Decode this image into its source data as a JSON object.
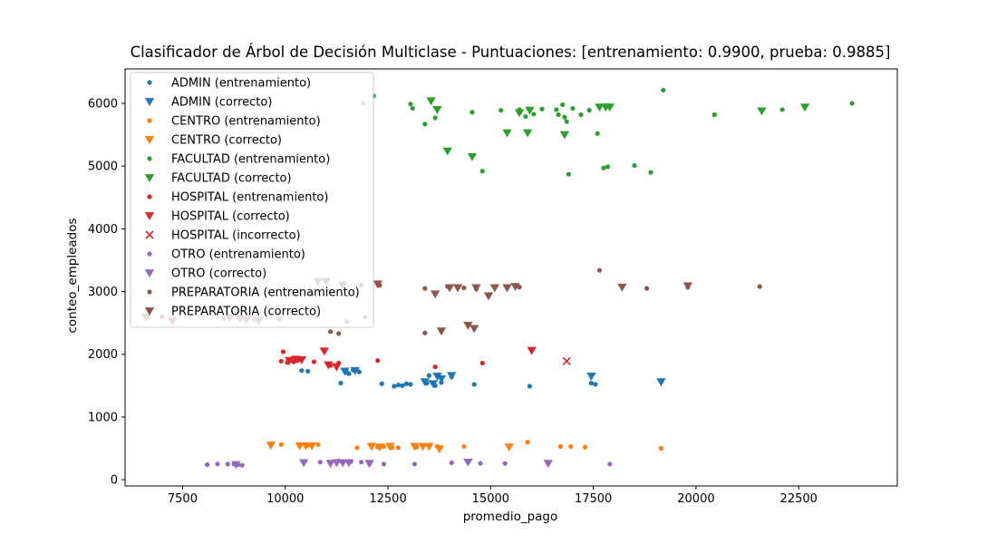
{
  "chart_data": {
    "type": "scatter",
    "title": "Clasificador de Árbol de Decisión Multiclase - Puntuaciones: [entrenamiento: 0.9900, prueba: 0.9885]",
    "xlabel": "promedio_pago",
    "ylabel": "conteo_empleados",
    "xlim": [
      6100,
      24900
    ],
    "ylim": [
      -100,
      6550
    ],
    "xticks": [
      7500,
      10000,
      12500,
      15000,
      17500,
      20000,
      22500
    ],
    "yticks": [
      0,
      1000,
      2000,
      3000,
      4000,
      5000,
      6000
    ],
    "grid": false,
    "legend_position": "top-left",
    "series": [
      {
        "name": "ADMIN (entrenamiento)",
        "color": "#1f77b4",
        "marker": "dot",
        "points": [
          [
            10400,
            1740
          ],
          [
            10550,
            1730
          ],
          [
            11350,
            1540
          ],
          [
            11500,
            1710
          ],
          [
            11550,
            1690
          ],
          [
            11650,
            1750
          ],
          [
            11800,
            1720
          ],
          [
            12350,
            1530
          ],
          [
            12650,
            1490
          ],
          [
            12750,
            1510
          ],
          [
            12850,
            1500
          ],
          [
            12950,
            1530
          ],
          [
            13050,
            1520
          ],
          [
            13450,
            1540
          ],
          [
            13500,
            1660
          ],
          [
            13650,
            1500
          ],
          [
            13800,
            1550
          ],
          [
            14050,
            1640
          ],
          [
            14600,
            1520
          ],
          [
            15950,
            1490
          ],
          [
            17450,
            1540
          ],
          [
            17550,
            1520
          ]
        ]
      },
      {
        "name": "ADMIN (correcto)",
        "color": "#1f77b4",
        "marker": "triangle",
        "points": [
          [
            11450,
            1730
          ],
          [
            11700,
            1740
          ],
          [
            13400,
            1560
          ],
          [
            13600,
            1530
          ],
          [
            13700,
            1650
          ],
          [
            13800,
            1610
          ],
          [
            14050,
            1660
          ],
          [
            17450,
            1650
          ],
          [
            19150,
            1560
          ]
        ]
      },
      {
        "name": "CENTRO (entrenamiento)",
        "color": "#ff7f0e",
        "marker": "dot",
        "points": [
          [
            9900,
            560
          ],
          [
            10550,
            550
          ],
          [
            10800,
            560
          ],
          [
            11750,
            510
          ],
          [
            12250,
            520
          ],
          [
            12400,
            530
          ],
          [
            12600,
            510
          ],
          [
            12750,
            510
          ],
          [
            13200,
            520
          ],
          [
            13700,
            530
          ],
          [
            14350,
            530
          ],
          [
            15900,
            600
          ],
          [
            16700,
            530
          ],
          [
            16950,
            530
          ],
          [
            17300,
            520
          ],
          [
            19150,
            500
          ]
        ]
      },
      {
        "name": "CENTRO (correcto)",
        "color": "#ff7f0e",
        "marker": "triangle",
        "points": [
          [
            9650,
            550
          ],
          [
            10350,
            540
          ],
          [
            10500,
            540
          ],
          [
            10650,
            540
          ],
          [
            12100,
            530
          ],
          [
            12300,
            520
          ],
          [
            12550,
            530
          ],
          [
            13150,
            530
          ],
          [
            13350,
            530
          ],
          [
            13500,
            530
          ],
          [
            13750,
            490
          ],
          [
            15450,
            520
          ]
        ]
      },
      {
        "name": "FACULTAD (entrenamiento)",
        "color": "#2ca02c",
        "marker": "dot",
        "points": [
          [
            11900,
            6000
          ],
          [
            12150,
            6120
          ],
          [
            13050,
            5990
          ],
          [
            13100,
            5920
          ],
          [
            13400,
            5670
          ],
          [
            13650,
            5770
          ],
          [
            14550,
            5860
          ],
          [
            14800,
            4920
          ],
          [
            15250,
            5890
          ],
          [
            15700,
            5900
          ],
          [
            15850,
            5790
          ],
          [
            16050,
            5830
          ],
          [
            16250,
            5910
          ],
          [
            16600,
            5900
          ],
          [
            16650,
            5820
          ],
          [
            16750,
            5980
          ],
          [
            16800,
            5780
          ],
          [
            16900,
            4870
          ],
          [
            16850,
            5710
          ],
          [
            17000,
            5920
          ],
          [
            17200,
            5820
          ],
          [
            17400,
            5890
          ],
          [
            17600,
            5520
          ],
          [
            17750,
            4970
          ],
          [
            17850,
            4990
          ],
          [
            18500,
            5010
          ],
          [
            18900,
            4900
          ],
          [
            19200,
            6210
          ],
          [
            20450,
            5820
          ],
          [
            22100,
            5900
          ],
          [
            23800,
            6000
          ]
        ]
      },
      {
        "name": "FACULTAD (correcto)",
        "color": "#2ca02c",
        "marker": "triangle",
        "points": [
          [
            13550,
            6040
          ],
          [
            13700,
            5900
          ],
          [
            13950,
            5240
          ],
          [
            14550,
            5150
          ],
          [
            15400,
            5530
          ],
          [
            15700,
            5850
          ],
          [
            15900,
            5530
          ],
          [
            15950,
            5890
          ],
          [
            16800,
            5500
          ],
          [
            17650,
            5940
          ],
          [
            17800,
            5940
          ],
          [
            17900,
            5940
          ],
          [
            21600,
            5880
          ],
          [
            22650,
            5940
          ]
        ]
      },
      {
        "name": "HOSPITAL (entrenamiento)",
        "color": "#d62728",
        "marker": "dot",
        "points": [
          [
            9950,
            2040
          ],
          [
            9900,
            1890
          ],
          [
            10050,
            1870
          ],
          [
            10200,
            1880
          ],
          [
            10300,
            1900
          ],
          [
            10700,
            1880
          ],
          [
            11100,
            1820
          ],
          [
            11300,
            1860
          ],
          [
            11950,
            2590
          ],
          [
            12250,
            1900
          ],
          [
            13650,
            1800
          ],
          [
            14800,
            1860
          ]
        ]
      },
      {
        "name": "HOSPITAL (correcto)",
        "color": "#d62728",
        "marker": "triangle",
        "points": [
          [
            10100,
            1900
          ],
          [
            10250,
            1920
          ],
          [
            10400,
            1910
          ],
          [
            10950,
            2050
          ],
          [
            11050,
            1830
          ],
          [
            11250,
            1800
          ],
          [
            16000,
            2060
          ]
        ]
      },
      {
        "name": "HOSPITAL (incorrecto)",
        "color": "#d62728",
        "marker": "x",
        "points": [
          [
            16850,
            1890
          ]
        ]
      },
      {
        "name": "OTRO (entrenamiento)",
        "color": "#9467bd",
        "marker": "dot",
        "points": [
          [
            8100,
            240
          ],
          [
            8350,
            250
          ],
          [
            8600,
            250
          ],
          [
            8750,
            250
          ],
          [
            8850,
            240
          ],
          [
            8950,
            230
          ],
          [
            10850,
            280
          ],
          [
            11300,
            300
          ],
          [
            11600,
            290
          ],
          [
            11850,
            280
          ],
          [
            12050,
            250
          ],
          [
            12400,
            250
          ],
          [
            13150,
            250
          ],
          [
            14050,
            270
          ],
          [
            14750,
            260
          ],
          [
            15350,
            260
          ],
          [
            17900,
            250
          ]
        ]
      },
      {
        "name": "OTRO (correcto)",
        "color": "#9467bd",
        "marker": "triangle",
        "points": [
          [
            8800,
            240
          ],
          [
            10450,
            270
          ],
          [
            11100,
            260
          ],
          [
            11250,
            270
          ],
          [
            11400,
            270
          ],
          [
            11550,
            270
          ],
          [
            12050,
            260
          ],
          [
            14450,
            280
          ],
          [
            16400,
            260
          ]
        ]
      },
      {
        "name": "PREPARATORIA (entrenamiento)",
        "color": "#8c564b",
        "marker": "dot",
        "points": [
          [
            7000,
            2600
          ],
          [
            8500,
            2570
          ],
          [
            9250,
            2560
          ],
          [
            9850,
            2560
          ],
          [
            11100,
            2360
          ],
          [
            11300,
            2330
          ],
          [
            11500,
            2520
          ],
          [
            11850,
            3100
          ],
          [
            12300,
            3100
          ],
          [
            13400,
            2340
          ],
          [
            13400,
            3050
          ],
          [
            13950,
            3080
          ],
          [
            14350,
            3060
          ],
          [
            14650,
            3040
          ],
          [
            15700,
            3070
          ],
          [
            17650,
            3340
          ],
          [
            18800,
            3050
          ],
          [
            19800,
            3070
          ],
          [
            21550,
            3080
          ]
        ]
      },
      {
        "name": "PREPARATORIA (correcto)",
        "color": "#8c564b",
        "marker": "triangle",
        "points": [
          [
            6600,
            2590
          ],
          [
            7250,
            2530
          ],
          [
            8650,
            2580
          ],
          [
            8900,
            2570
          ],
          [
            9050,
            2550
          ],
          [
            9350,
            2530
          ],
          [
            10800,
            3160
          ],
          [
            11000,
            3160
          ],
          [
            11400,
            3100
          ],
          [
            12250,
            3120
          ],
          [
            13650,
            2960
          ],
          [
            13800,
            2370
          ],
          [
            14000,
            3060
          ],
          [
            14200,
            3060
          ],
          [
            14450,
            2460
          ],
          [
            14600,
            2410
          ],
          [
            14650,
            3060
          ],
          [
            14950,
            2930
          ],
          [
            15100,
            3060
          ],
          [
            15400,
            3060
          ],
          [
            15600,
            3080
          ],
          [
            18200,
            3070
          ],
          [
            19800,
            3090
          ]
        ]
      }
    ]
  }
}
